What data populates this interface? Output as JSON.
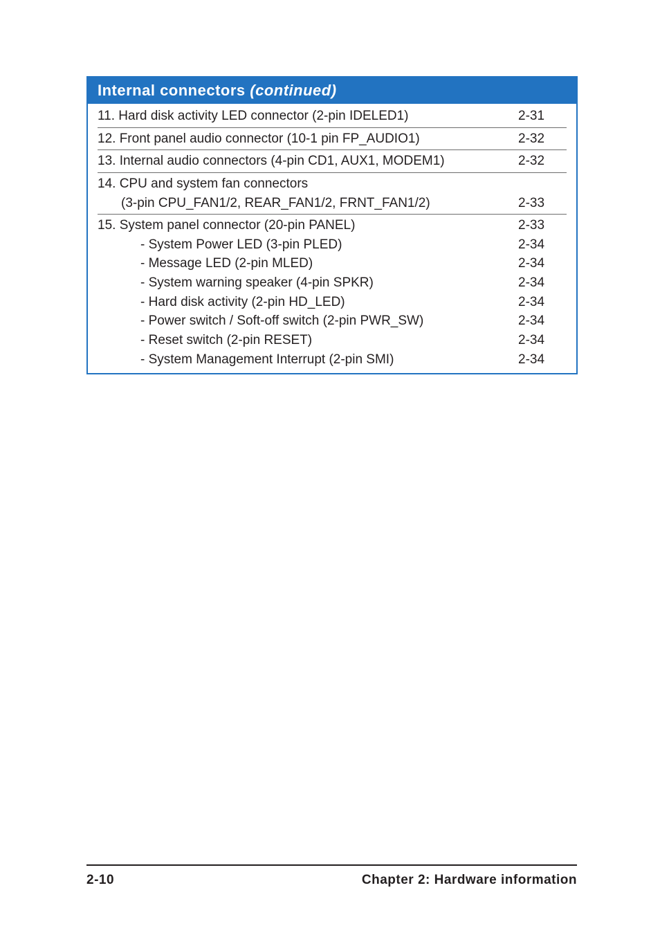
{
  "header": {
    "title": "Internal connectors",
    "continued": "(continued)"
  },
  "sections": [
    {
      "type": "simple",
      "label": "11. Hard disk activity LED connector (2-pin IDELED1)",
      "page": "2-31"
    },
    {
      "type": "simple",
      "label": "12. Front panel audio connector (10-1 pin FP_AUDIO1)",
      "page": "2-32"
    },
    {
      "type": "simple",
      "label": "13. Internal audio connectors (4-pin CD1, AUX1, MODEM1)",
      "page": "2-32"
    },
    {
      "type": "multiline",
      "line1": "14. CPU and system fan connectors",
      "line2": "(3-pin CPU_FAN1/2, REAR_FAN1/2, FRNT_FAN1/2)",
      "page": "2-33"
    },
    {
      "type": "withsubs",
      "label": "15. System panel connector (20-pin PANEL)",
      "page": "2-33",
      "subs": [
        {
          "label": "- System Power LED (3-pin PLED)",
          "page": "2-34"
        },
        {
          "label": "- Message LED (2-pin MLED)",
          "page": "2-34"
        },
        {
          "label": "- System warning speaker (4-pin SPKR)",
          "page": "2-34"
        },
        {
          "label": "- Hard disk activity (2-pin HD_LED)",
          "page": "2-34"
        },
        {
          "label": "- Power switch / Soft-off switch (2-pin PWR_SW)",
          "page": "2-34"
        },
        {
          "label": "- Reset switch (2-pin RESET)",
          "page": "2-34"
        },
        {
          "label": "- System Management Interrupt (2-pin SMI)",
          "page": "2-34"
        }
      ]
    }
  ],
  "footer": {
    "left": "2-10",
    "right": "Chapter 2: Hardware information"
  }
}
